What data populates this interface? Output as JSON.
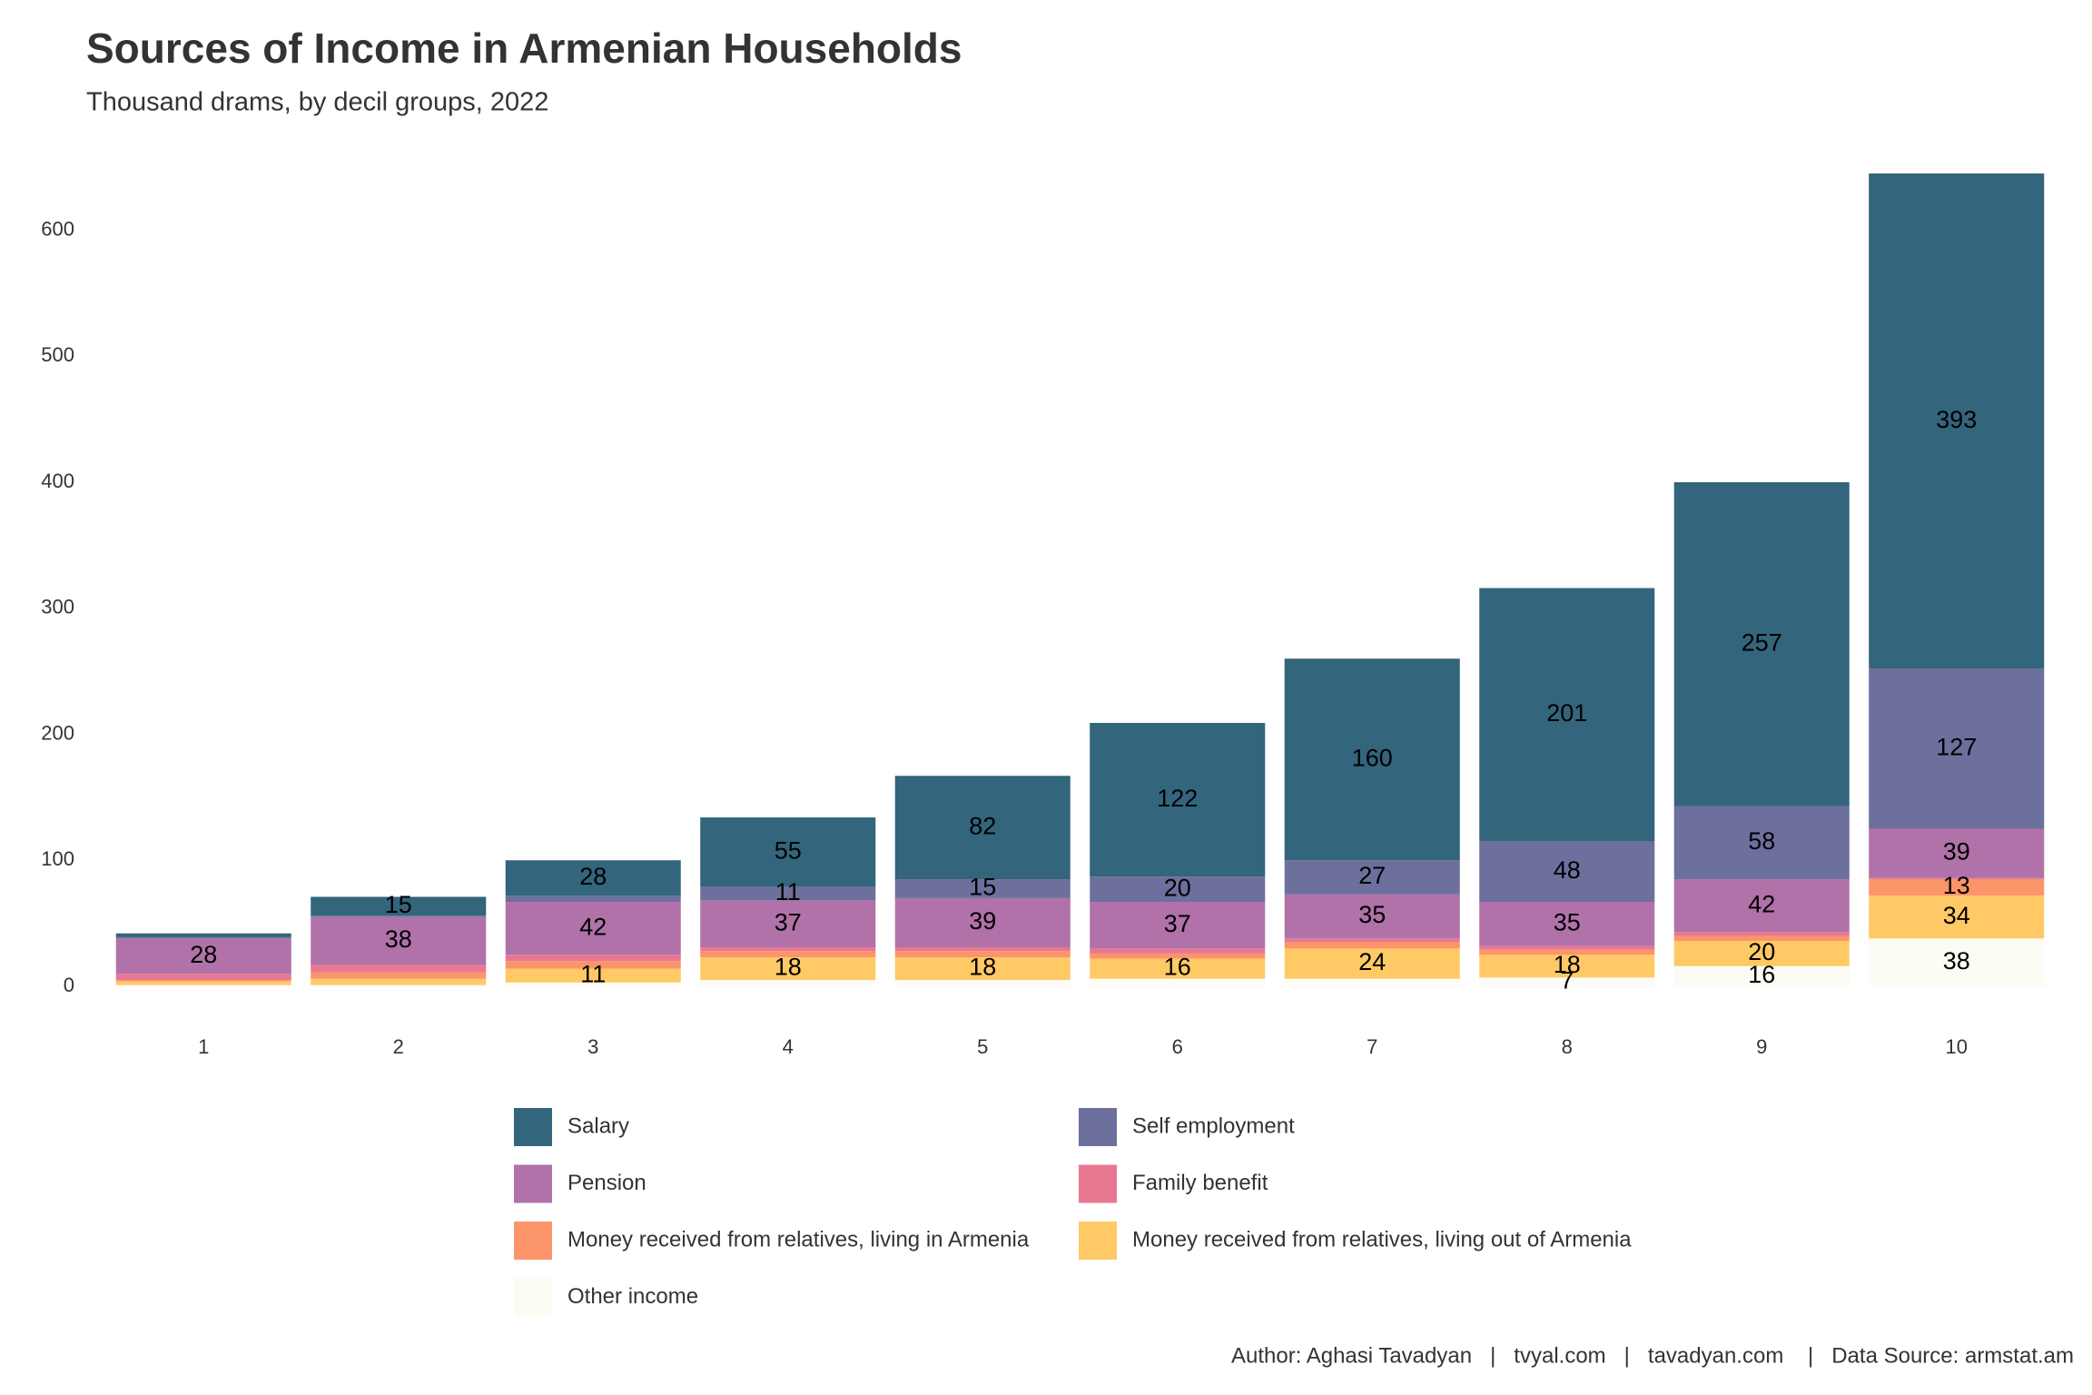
{
  "chart_data": {
    "type": "stacked_bar",
    "title": "Sources of Income in Armenian Households",
    "subtitle": "Thousand drams, by decil groups, 2022",
    "caption": "Author: Aghasi Tavadyan   |   tvyal.com   |   tavadyan.com    |   Data Source: armstat.am",
    "categories": [
      "1",
      "2",
      "3",
      "4",
      "5",
      "6",
      "7",
      "8",
      "9",
      "10"
    ],
    "series": [
      {
        "name": "Salary",
        "color": "#33657c",
        "values": [
          3,
          15,
          28,
          55,
          82,
          122,
          160,
          201,
          257,
          393
        ]
      },
      {
        "name": "Self employment",
        "color": "#6d6f9d",
        "values": [
          1,
          1,
          5,
          11,
          15,
          20,
          27,
          48,
          58,
          127
        ]
      },
      {
        "name": "Pension",
        "color": "#b072a8",
        "values": [
          28,
          38,
          42,
          37,
          39,
          37,
          35,
          35,
          42,
          39
        ]
      },
      {
        "name": "Family benefit",
        "color": "#e87892",
        "values": [
          5,
          6,
          5,
          3,
          3,
          4,
          3,
          3,
          3,
          1
        ]
      },
      {
        "name": "Money received from relatives, living in Armenia",
        "color": "#fc946a",
        "values": [
          1,
          5,
          6,
          5,
          5,
          4,
          5,
          4,
          4,
          13
        ]
      },
      {
        "name": "Money received from relatives, living out of Armenia",
        "color": "#ffc966",
        "values": [
          3,
          5,
          11,
          18,
          18,
          16,
          24,
          18,
          20,
          34
        ]
      },
      {
        "name": "Other income",
        "color": "#fcfbf4",
        "values": [
          1,
          1,
          3,
          5,
          5,
          6,
          6,
          7,
          16,
          38
        ]
      }
    ],
    "ylim": [
      0,
      645
    ],
    "yticks": [
      0,
      100,
      200,
      300,
      400,
      500,
      600
    ],
    "grid": false
  }
}
